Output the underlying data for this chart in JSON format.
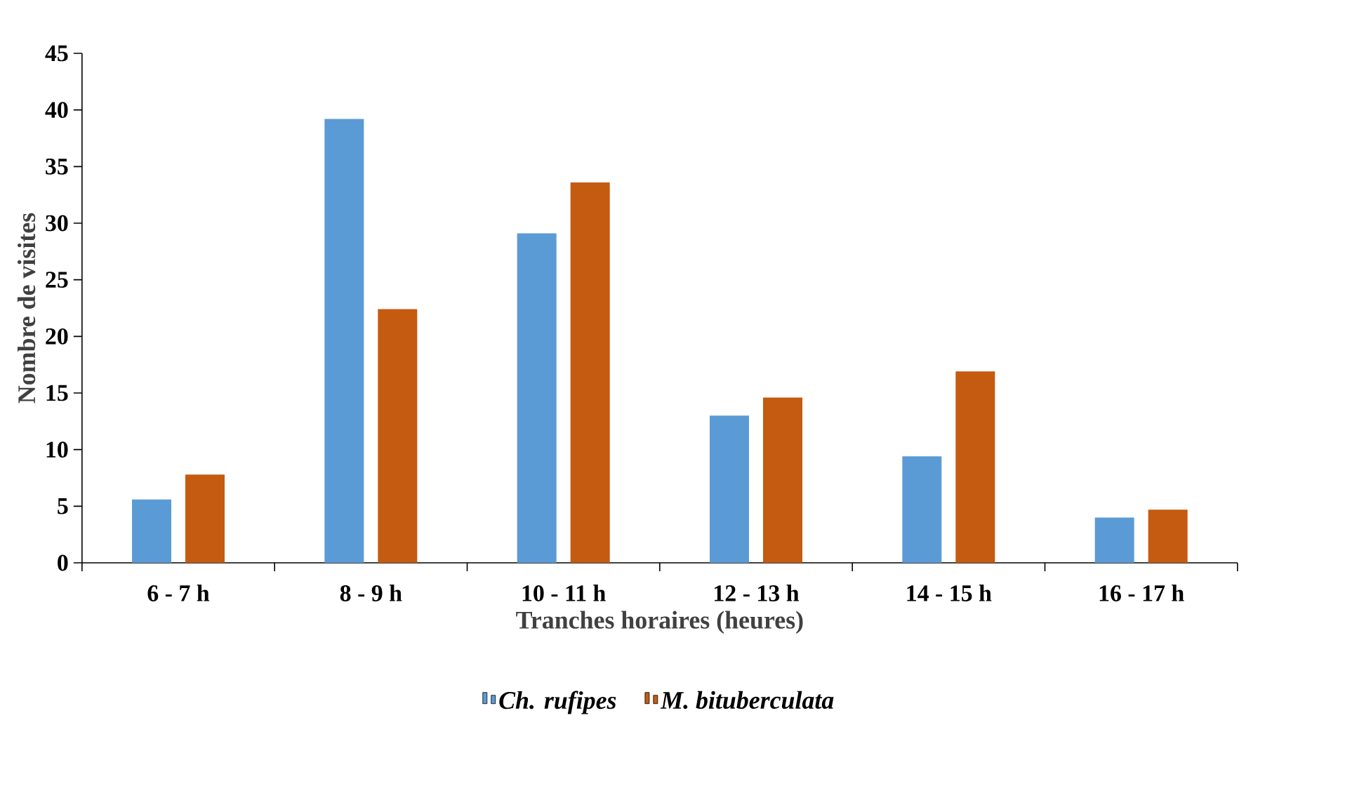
{
  "chart_data": {
    "type": "bar",
    "xlabel": "Tranches horaires (heures)",
    "ylabel": "Nombre de visites",
    "categories": [
      "6 - 7 h",
      "8 - 9 h",
      "10 - 11 h",
      "12 - 13 h",
      "14 - 15 h",
      "16 - 17 h"
    ],
    "series": [
      {
        "name": "*Ch. rufipes*",
        "color": "#5b9bd5",
        "values": [
          5.6,
          39.2,
          29.1,
          13.0,
          9.4,
          4.0
        ]
      },
      {
        "name": "*M. bituberculata*",
        "color": "#c55a11",
        "values": [
          7.8,
          22.4,
          33.6,
          14.6,
          16.9,
          4.7
        ]
      }
    ],
    "ylim": [
      0,
      45
    ],
    "yticks": [
      0,
      5,
      10,
      15,
      20,
      25,
      30,
      35,
      40,
      45
    ],
    "grid": false,
    "legend": "bottom"
  }
}
